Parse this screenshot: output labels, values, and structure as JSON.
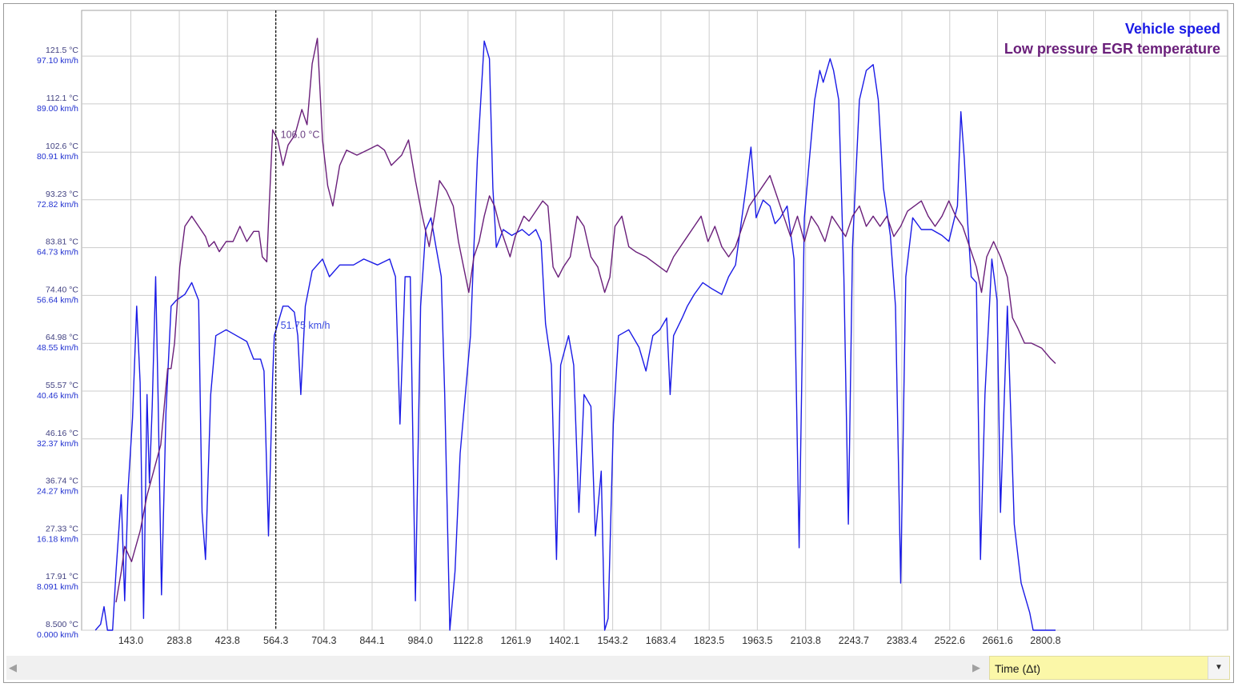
{
  "chart_data": {
    "type": "line",
    "x_ticks": [
      "143.0",
      "283.8",
      "423.8",
      "564.3",
      "704.3",
      "844.1",
      "984.0",
      "1122.8",
      "1261.9",
      "1402.1",
      "1543.2",
      "1683.4",
      "1823.5",
      "1963.5",
      "2103.8",
      "2243.7",
      "2383.4",
      "2522.6",
      "2661.6",
      "2800.8"
    ],
    "y_ticks_temperature": [
      "8.500 °C",
      "17.91 °C",
      "27.33 °C",
      "36.74 °C",
      "46.16 °C",
      "55.57 °C",
      "64.98 °C",
      "74.40 °C",
      "83.81 °C",
      "93.23 °C",
      "102.6 °C",
      "112.1 °C",
      "121.5 °C"
    ],
    "y_ticks_speed": [
      "0.000 km/h",
      "8.091 km/h",
      "16.18 km/h",
      "24.27 km/h",
      "32.37 km/h",
      "40.46 km/h",
      "48.55 km/h",
      "56.64 km/h",
      "64.73 km/h",
      "72.82 km/h",
      "80.91 km/h",
      "89.00 km/h",
      "97.10 km/h"
    ],
    "xlim": [
      0,
      3330
    ],
    "ylim_temperature": [
      8.5,
      130.5
    ],
    "ylim_speed": [
      0,
      105.2
    ],
    "grid": true,
    "legend_position": "top-right",
    "series": [
      {
        "name": "Vehicle speed",
        "unit": "km/h",
        "color": "#1a1ae6",
        "points": [
          [
            40,
            0
          ],
          [
            55,
            1
          ],
          [
            65,
            4
          ],
          [
            75,
            0
          ],
          [
            90,
            0
          ],
          [
            100,
            10
          ],
          [
            115,
            23
          ],
          [
            125,
            5
          ],
          [
            135,
            24
          ],
          [
            148,
            36
          ],
          [
            160,
            55
          ],
          [
            170,
            42
          ],
          [
            180,
            2
          ],
          [
            190,
            40
          ],
          [
            197,
            25
          ],
          [
            205,
            38
          ],
          [
            215,
            60
          ],
          [
            222,
            40
          ],
          [
            232,
            6
          ],
          [
            245,
            37
          ],
          [
            260,
            55
          ],
          [
            275,
            56
          ],
          [
            300,
            57
          ],
          [
            320,
            59
          ],
          [
            340,
            56
          ],
          [
            350,
            20
          ],
          [
            360,
            12
          ],
          [
            375,
            40
          ],
          [
            390,
            50
          ],
          [
            420,
            51
          ],
          [
            450,
            50
          ],
          [
            480,
            49
          ],
          [
            500,
            46
          ],
          [
            520,
            46
          ],
          [
            530,
            44
          ],
          [
            543,
            16
          ],
          [
            555,
            43
          ],
          [
            560,
            50
          ],
          [
            570,
            52
          ],
          [
            585,
            55
          ],
          [
            600,
            55
          ],
          [
            618,
            54
          ],
          [
            628,
            50
          ],
          [
            637,
            40
          ],
          [
            650,
            55
          ],
          [
            670,
            61
          ],
          [
            700,
            63
          ],
          [
            720,
            60
          ],
          [
            750,
            62
          ],
          [
            790,
            62
          ],
          [
            820,
            63
          ],
          [
            860,
            62
          ],
          [
            895,
            63
          ],
          [
            912,
            60
          ],
          [
            925,
            35
          ],
          [
            940,
            60
          ],
          [
            955,
            60
          ],
          [
            970,
            5
          ],
          [
            985,
            55
          ],
          [
            1000,
            68
          ],
          [
            1015,
            70
          ],
          [
            1030,
            65
          ],
          [
            1045,
            60
          ],
          [
            1055,
            40
          ],
          [
            1070,
            0
          ],
          [
            1085,
            10
          ],
          [
            1100,
            30
          ],
          [
            1115,
            40
          ],
          [
            1130,
            50
          ],
          [
            1150,
            80
          ],
          [
            1160,
            90
          ],
          [
            1170,
            100
          ],
          [
            1185,
            97
          ],
          [
            1195,
            75
          ],
          [
            1205,
            65
          ],
          [
            1225,
            68
          ],
          [
            1250,
            67
          ],
          [
            1280,
            68
          ],
          [
            1300,
            67
          ],
          [
            1320,
            68
          ],
          [
            1335,
            66
          ],
          [
            1348,
            52
          ],
          [
            1365,
            45
          ],
          [
            1380,
            12
          ],
          [
            1392,
            45
          ],
          [
            1415,
            50
          ],
          [
            1430,
            45
          ],
          [
            1445,
            20
          ],
          [
            1460,
            40
          ],
          [
            1480,
            38
          ],
          [
            1493,
            16
          ],
          [
            1510,
            27
          ],
          [
            1520,
            0
          ],
          [
            1530,
            2
          ],
          [
            1545,
            35
          ],
          [
            1560,
            50
          ],
          [
            1590,
            51
          ],
          [
            1620,
            48
          ],
          [
            1640,
            44
          ],
          [
            1660,
            50
          ],
          [
            1680,
            51
          ],
          [
            1700,
            53
          ],
          [
            1710,
            40
          ],
          [
            1720,
            50
          ],
          [
            1745,
            53
          ],
          [
            1760,
            55
          ],
          [
            1780,
            57
          ],
          [
            1805,
            59
          ],
          [
            1830,
            58
          ],
          [
            1860,
            57
          ],
          [
            1880,
            60
          ],
          [
            1900,
            62
          ],
          [
            1930,
            75
          ],
          [
            1945,
            82
          ],
          [
            1960,
            70
          ],
          [
            1980,
            73
          ],
          [
            2000,
            72
          ],
          [
            2015,
            69
          ],
          [
            2030,
            70
          ],
          [
            2050,
            72
          ],
          [
            2070,
            63
          ],
          [
            2085,
            14
          ],
          [
            2100,
            70
          ],
          [
            2115,
            80
          ],
          [
            2130,
            90
          ],
          [
            2145,
            95
          ],
          [
            2155,
            93
          ],
          [
            2175,
            97
          ],
          [
            2185,
            95
          ],
          [
            2200,
            90
          ],
          [
            2215,
            60
          ],
          [
            2228,
            18
          ],
          [
            2240,
            65
          ],
          [
            2260,
            90
          ],
          [
            2280,
            95
          ],
          [
            2300,
            96
          ],
          [
            2315,
            90
          ],
          [
            2330,
            75
          ],
          [
            2350,
            67
          ],
          [
            2365,
            55
          ],
          [
            2380,
            8
          ],
          [
            2395,
            60
          ],
          [
            2415,
            70
          ],
          [
            2440,
            68
          ],
          [
            2470,
            68
          ],
          [
            2500,
            67
          ],
          [
            2520,
            66
          ],
          [
            2545,
            72
          ],
          [
            2555,
            88
          ],
          [
            2565,
            80
          ],
          [
            2575,
            69
          ],
          [
            2585,
            60
          ],
          [
            2600,
            59
          ],
          [
            2612,
            12
          ],
          [
            2625,
            40
          ],
          [
            2645,
            63
          ],
          [
            2660,
            56
          ],
          [
            2670,
            20
          ],
          [
            2690,
            55
          ],
          [
            2710,
            18
          ],
          [
            2730,
            8
          ],
          [
            2755,
            3
          ],
          [
            2765,
            0
          ],
          [
            2830,
            0
          ]
        ]
      },
      {
        "name": "Low pressure EGR temperature",
        "unit": "°C",
        "color": "#6a1f7a",
        "points": [
          [
            100,
            14
          ],
          [
            115,
            20
          ],
          [
            125,
            25
          ],
          [
            145,
            22
          ],
          [
            170,
            28
          ],
          [
            190,
            35
          ],
          [
            210,
            40
          ],
          [
            230,
            45
          ],
          [
            250,
            60
          ],
          [
            260,
            60
          ],
          [
            270,
            65
          ],
          [
            285,
            80
          ],
          [
            300,
            88
          ],
          [
            320,
            90
          ],
          [
            340,
            88
          ],
          [
            360,
            86
          ],
          [
            370,
            84
          ],
          [
            385,
            85
          ],
          [
            400,
            83
          ],
          [
            420,
            85
          ],
          [
            440,
            85
          ],
          [
            460,
            88
          ],
          [
            480,
            85
          ],
          [
            500,
            87
          ],
          [
            515,
            87
          ],
          [
            525,
            82
          ],
          [
            538,
            81
          ],
          [
            545,
            92
          ],
          [
            555,
            107
          ],
          [
            570,
            105
          ],
          [
            585,
            100
          ],
          [
            600,
            104
          ],
          [
            620,
            106
          ],
          [
            640,
            111
          ],
          [
            655,
            108
          ],
          [
            670,
            120
          ],
          [
            685,
            125
          ],
          [
            700,
            105
          ],
          [
            715,
            96
          ],
          [
            730,
            92
          ],
          [
            750,
            100
          ],
          [
            770,
            103
          ],
          [
            800,
            102
          ],
          [
            830,
            103
          ],
          [
            860,
            104
          ],
          [
            880,
            103
          ],
          [
            900,
            100
          ],
          [
            930,
            102
          ],
          [
            950,
            105
          ],
          [
            970,
            97
          ],
          [
            990,
            90
          ],
          [
            1010,
            84
          ],
          [
            1025,
            90
          ],
          [
            1040,
            97
          ],
          [
            1060,
            95
          ],
          [
            1080,
            92
          ],
          [
            1095,
            85
          ],
          [
            1110,
            80
          ],
          [
            1125,
            75
          ],
          [
            1140,
            82
          ],
          [
            1155,
            85
          ],
          [
            1170,
            90
          ],
          [
            1185,
            94
          ],
          [
            1200,
            92
          ],
          [
            1215,
            88
          ],
          [
            1230,
            85
          ],
          [
            1245,
            82
          ],
          [
            1260,
            86
          ],
          [
            1285,
            90
          ],
          [
            1300,
            89
          ],
          [
            1320,
            91
          ],
          [
            1340,
            93
          ],
          [
            1355,
            92
          ],
          [
            1370,
            80
          ],
          [
            1385,
            78
          ],
          [
            1400,
            80
          ],
          [
            1420,
            82
          ],
          [
            1440,
            90
          ],
          [
            1460,
            88
          ],
          [
            1480,
            82
          ],
          [
            1500,
            80
          ],
          [
            1520,
            75
          ],
          [
            1535,
            78
          ],
          [
            1550,
            88
          ],
          [
            1570,
            90
          ],
          [
            1590,
            84
          ],
          [
            1610,
            83
          ],
          [
            1640,
            82
          ],
          [
            1680,
            80
          ],
          [
            1700,
            79
          ],
          [
            1720,
            82
          ],
          [
            1740,
            84
          ],
          [
            1760,
            86
          ],
          [
            1780,
            88
          ],
          [
            1800,
            90
          ],
          [
            1820,
            85
          ],
          [
            1840,
            88
          ],
          [
            1860,
            84
          ],
          [
            1880,
            82
          ],
          [
            1900,
            84
          ],
          [
            1920,
            88
          ],
          [
            1940,
            92
          ],
          [
            1960,
            94
          ],
          [
            1980,
            96
          ],
          [
            2000,
            98
          ],
          [
            2020,
            94
          ],
          [
            2040,
            90
          ],
          [
            2060,
            86
          ],
          [
            2080,
            90
          ],
          [
            2100,
            85
          ],
          [
            2120,
            90
          ],
          [
            2140,
            88
          ],
          [
            2160,
            85
          ],
          [
            2180,
            90
          ],
          [
            2200,
            88
          ],
          [
            2220,
            86
          ],
          [
            2240,
            90
          ],
          [
            2260,
            92
          ],
          [
            2280,
            88
          ],
          [
            2300,
            90
          ],
          [
            2320,
            88
          ],
          [
            2340,
            90
          ],
          [
            2360,
            86
          ],
          [
            2380,
            88
          ],
          [
            2400,
            91
          ],
          [
            2420,
            92
          ],
          [
            2440,
            93
          ],
          [
            2460,
            90
          ],
          [
            2480,
            88
          ],
          [
            2500,
            90
          ],
          [
            2520,
            93
          ],
          [
            2540,
            90
          ],
          [
            2560,
            88
          ],
          [
            2580,
            84
          ],
          [
            2600,
            80
          ],
          [
            2615,
            75
          ],
          [
            2630,
            82
          ],
          [
            2650,
            85
          ],
          [
            2670,
            82
          ],
          [
            2690,
            78
          ],
          [
            2705,
            70
          ],
          [
            2720,
            68
          ],
          [
            2740,
            65
          ],
          [
            2760,
            65
          ],
          [
            2790,
            64
          ],
          [
            2815,
            62
          ],
          [
            2830,
            61
          ]
        ]
      }
    ],
    "cursor": {
      "x": 564.3,
      "labels": [
        "106.0 °C",
        "51.75 km/h"
      ]
    }
  },
  "legend": {
    "speed_label": "Vehicle speed",
    "temperature_label": "Low pressure EGR temperature"
  },
  "controls": {
    "axis_selector_value": "Time (Δt)"
  }
}
